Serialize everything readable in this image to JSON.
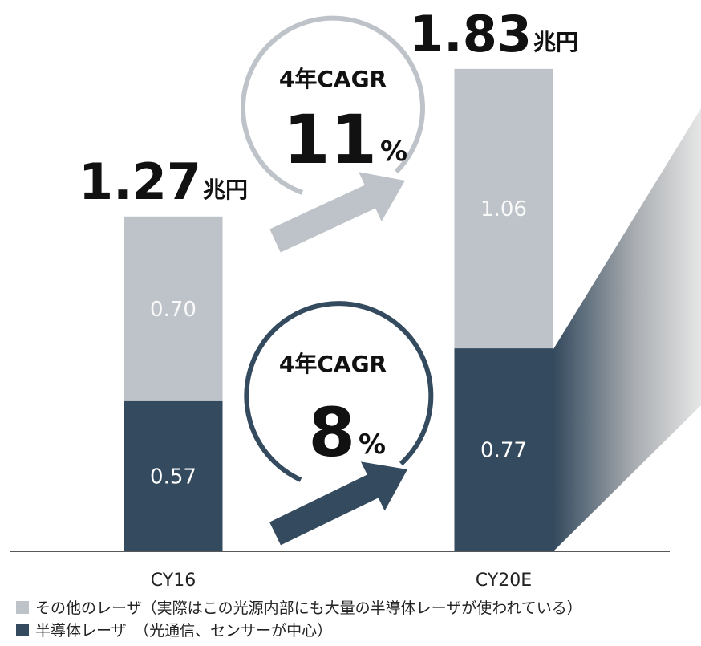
{
  "chart_data": {
    "type": "stacked_bar",
    "categories": [
      "CY16",
      "CY20E"
    ],
    "series": [
      {
        "name": "半導体レーザ　（光通信、センサーが中心）",
        "color": "#344a5e",
        "values": [
          0.57,
          0.77
        ]
      },
      {
        "name": "その他のレーザ（実際はこの光源内部にも大量の半導体レーザが使われている）",
        "color": "#bdc3c8",
        "values": [
          0.7,
          1.06
        ],
        "value_labels": [
          "0.70",
          "1.06"
        ]
      }
    ],
    "totals": [
      1.27,
      1.83
    ],
    "total_unit": "兆円",
    "ylim": [
      0,
      2.0
    ],
    "annotations": [
      {
        "label": "4年CAGR",
        "value": "11",
        "unit": "%"
      },
      {
        "label": "4年CAGR",
        "value": "8",
        "unit": "%"
      }
    ]
  }
}
